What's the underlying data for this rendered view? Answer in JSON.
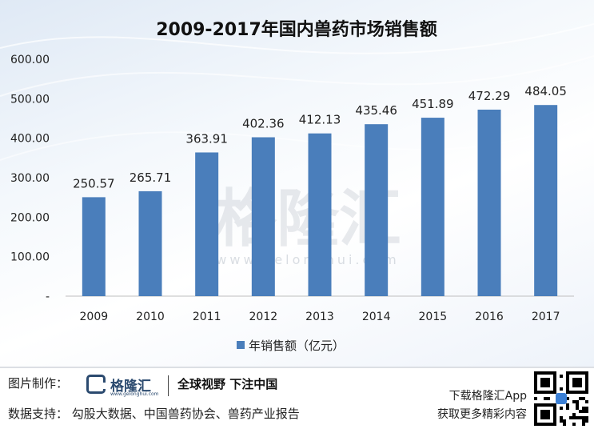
{
  "chart_data": {
    "type": "bar",
    "title": "2009-2017年国内兽药市场销售额",
    "categories": [
      "2009",
      "2010",
      "2011",
      "2012",
      "2013",
      "2014",
      "2015",
      "2016",
      "2017"
    ],
    "series": [
      {
        "name": "年销售额（亿元）",
        "values": [
          250.57,
          265.71,
          363.91,
          402.36,
          412.13,
          435.46,
          451.89,
          472.29,
          484.05
        ],
        "color": "#4a7ebb"
      }
    ],
    "data_labels": [
      "250.57",
      "265.71",
      "363.91",
      "402.36",
      "412.13",
      "435.46",
      "451.89",
      "472.29",
      "484.05"
    ],
    "ylim": [
      0,
      600
    ],
    "yticks": [
      "-",
      "100.00",
      "200.00",
      "300.00",
      "400.00",
      "500.00",
      "600.00"
    ],
    "ytick_values": [
      0,
      100,
      200,
      300,
      400,
      500,
      600
    ],
    "grid": false,
    "legend_position": "bottom"
  },
  "watermark": {
    "text": "格隆汇",
    "url": "www.gelonghui.com"
  },
  "footer": {
    "made_by": "图片制作：",
    "logo_name": "格隆汇",
    "logo_sub": "www.gelonghui.com",
    "slogan": "全球视野 下注中国",
    "source": "数据支持：  勾股大数据、中国兽药协会、兽药产业报告",
    "app_line1": "下载格隆汇App",
    "app_line2": "获取更多精彩内容"
  },
  "colors": {
    "bar": "#4a7ebb",
    "brand": "#2b4a6f"
  },
  "icons": {
    "qr": "qr-code-icon",
    "logo": "gelonghui-logo-icon"
  }
}
